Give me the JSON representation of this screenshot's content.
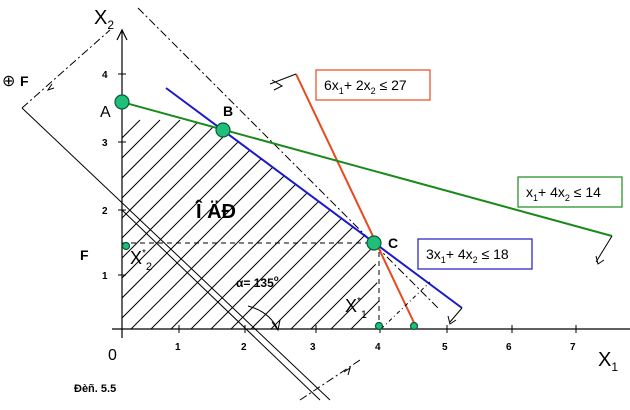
{
  "axes": {
    "x_label": "X",
    "x_sub": "1",
    "y_label": "X",
    "y_sub": "2",
    "origin": "0",
    "x_ticks": [
      "1",
      "2",
      "3",
      "4",
      "5",
      "6",
      "7"
    ],
    "y_ticks": [
      "1",
      "2",
      "3",
      "4"
    ]
  },
  "points": {
    "A": "A",
    "B": "B",
    "C": "C"
  },
  "region_label": "Î ÄĐ",
  "objective": {
    "plus_symbol": "⊕",
    "plus_label": "F",
    "f_label": "F"
  },
  "angle_label": "α= 135",
  "angle_degree": "o",
  "optimum": {
    "x1_star": "X",
    "x1_star_sup": "*",
    "x1_star_sub": "1",
    "x2_star": "X",
    "x2_star_sup": "*",
    "x2_star_sub": "2"
  },
  "constraints": [
    {
      "name": "red",
      "parts": [
        "6x",
        "1",
        "+ 2x",
        "2",
        " ≤ 27"
      ],
      "color": "#e8491d",
      "box_color": "#e8491d"
    },
    {
      "name": "green",
      "parts": [
        "x",
        "1",
        "+ 4x",
        "2",
        " ≤ 14"
      ],
      "color": "#1a8a1a",
      "box_color": "#1a8a1a"
    },
    {
      "name": "blue",
      "parts": [
        "3x",
        "1",
        "+ 4x",
        "2",
        " ≤ 18"
      ],
      "color": "#1a1ac8",
      "box_color": "#1a1ac8"
    }
  ],
  "caption": "Đèñ. 5.5",
  "colors": {
    "point_fill": "#1fbf7a",
    "point_stroke": "#0a5a3a"
  }
}
